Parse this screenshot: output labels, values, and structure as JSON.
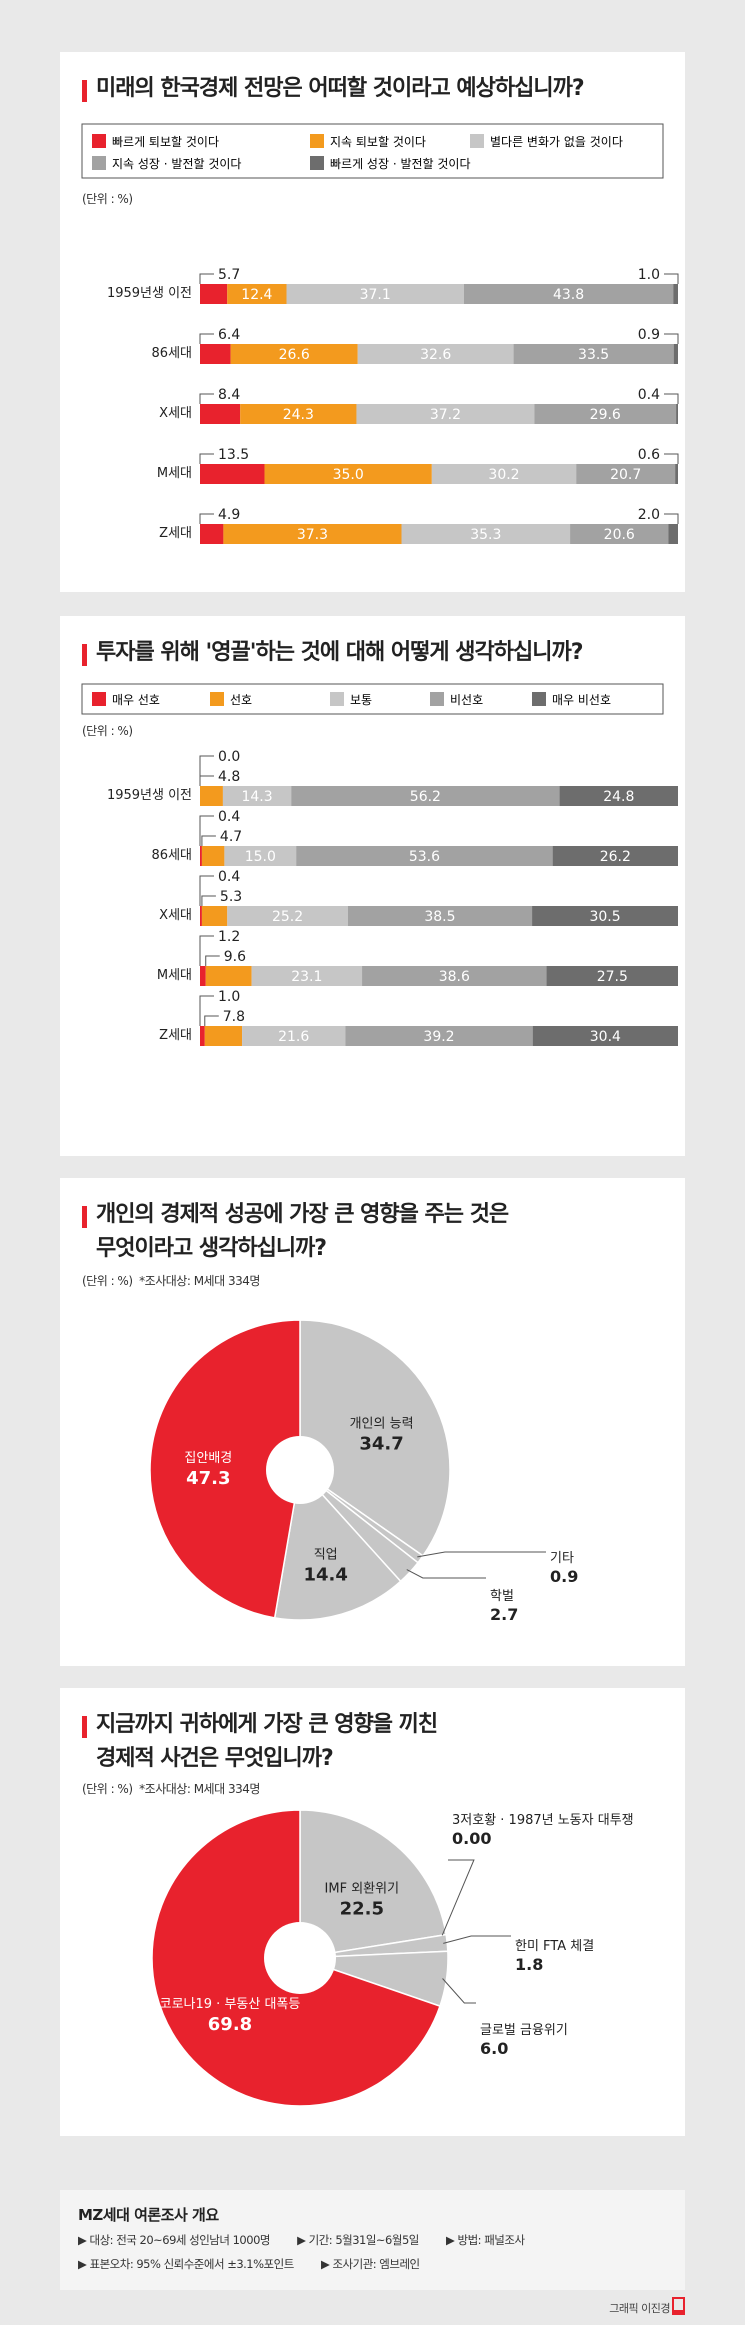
{
  "colors": {
    "red": "#e8222d",
    "orange": "#f39a1e",
    "lightgray": "#c6c6c6",
    "midgray": "#a2a2a2",
    "darkgray": "#6d6d6d"
  },
  "chart_data": [
    {
      "type": "bar",
      "stacked": true,
      "orientation": "horizontal",
      "title": "미래의 한국경제 전망은 어떠할 것이라고 예상하십니까?",
      "unit": "(단위 : %)",
      "categories": [
        "1959년생 이전",
        "86세대",
        "X세대",
        "M세대",
        "Z세대"
      ],
      "series": [
        {
          "name": "빠르게 퇴보할 것이다",
          "values": [
            5.7,
            6.4,
            8.4,
            13.5,
            4.9
          ]
        },
        {
          "name": "지속 퇴보할 것이다",
          "values": [
            12.4,
            26.6,
            24.3,
            35.0,
            37.3
          ]
        },
        {
          "name": "별다른 변화가 없을 것이다",
          "values": [
            37.1,
            32.6,
            37.2,
            30.2,
            35.3
          ]
        },
        {
          "name": "지속 성장 · 발전할 것이다",
          "values": [
            43.8,
            33.5,
            29.6,
            20.7,
            20.6
          ]
        },
        {
          "name": "빠르게 성장 · 발전할 것이다",
          "values": [
            1.0,
            0.9,
            0.4,
            0.6,
            2.0
          ]
        }
      ]
    },
    {
      "type": "bar",
      "stacked": true,
      "orientation": "horizontal",
      "title": "투자를 위해 '영끌'하는 것에 대해 어떻게 생각하십니까?",
      "unit": "(단위 : %)",
      "categories": [
        "1959년생 이전",
        "86세대",
        "X세대",
        "M세대",
        "Z세대"
      ],
      "series": [
        {
          "name": "매우 선호",
          "values": [
            0.0,
            0.4,
            0.4,
            1.2,
            1.0
          ]
        },
        {
          "name": "선호",
          "values": [
            4.8,
            4.7,
            5.3,
            9.6,
            7.8
          ]
        },
        {
          "name": "보통",
          "values": [
            14.3,
            15.0,
            25.2,
            23.1,
            21.6
          ]
        },
        {
          "name": "비선호",
          "values": [
            56.2,
            53.6,
            38.5,
            38.6,
            39.2
          ]
        },
        {
          "name": "매우 비선호",
          "values": [
            24.8,
            26.2,
            30.5,
            27.5,
            30.4
          ]
        }
      ]
    },
    {
      "type": "pie",
      "title": "개인의 경제적 성공에 가장 큰 영향을 주는 것은 무엇이라고 생각하십니까?",
      "title_line1": "개인의 경제적 성공에 가장 큰 영향을 주는 것은",
      "title_line2": "무엇이라고 생각하십니까?",
      "unit": "(단위 : %)",
      "note": "*조사대상: M세대 334명",
      "slices": [
        {
          "label": "개인의 능력",
          "value": "34.7"
        },
        {
          "label": "기타",
          "value": "0.9"
        },
        {
          "label": "학벌",
          "value": "2.7"
        },
        {
          "label": "직업",
          "value": "14.4"
        },
        {
          "label": "집안배경",
          "value": "47.3"
        }
      ]
    },
    {
      "type": "pie",
      "title": "지금까지 귀하에게 가장 큰 영향을 끼친 경제적 사건은 무엇입니까?",
      "title_line1": "지금까지 귀하에게 가장 큰 영향을 끼친",
      "title_line2": "경제적 사건은 무엇입니까?",
      "unit": "(단위 : %)",
      "note": "*조사대상: M세대 334명",
      "slices": [
        {
          "label": "IMF 외환위기",
          "value": "22.5"
        },
        {
          "label": "3저호황 · 1987년 노동자 대투쟁",
          "value": "0.00"
        },
        {
          "label": "한미 FTA 체결",
          "value": "1.8"
        },
        {
          "label": "글로벌 금융위기",
          "value": "6.0"
        },
        {
          "label": "코로나19 · 부동산 대폭등",
          "value": "69.8"
        }
      ]
    }
  ],
  "footer": {
    "title": "MZ세대 여론조사 개요",
    "items_row1": [
      "▶ 대상: 전국 20~69세 성인남녀 1000명",
      "▶ 기간: 5월31일~6월5일",
      "▶ 방법: 패널조사"
    ],
    "items_row2": [
      "▶ 표본오차: 95% 신뢰수준에서 ±3.1%포인트",
      "▶ 조사기관: 엠브레인"
    ]
  },
  "credit": "그래픽 이진경"
}
